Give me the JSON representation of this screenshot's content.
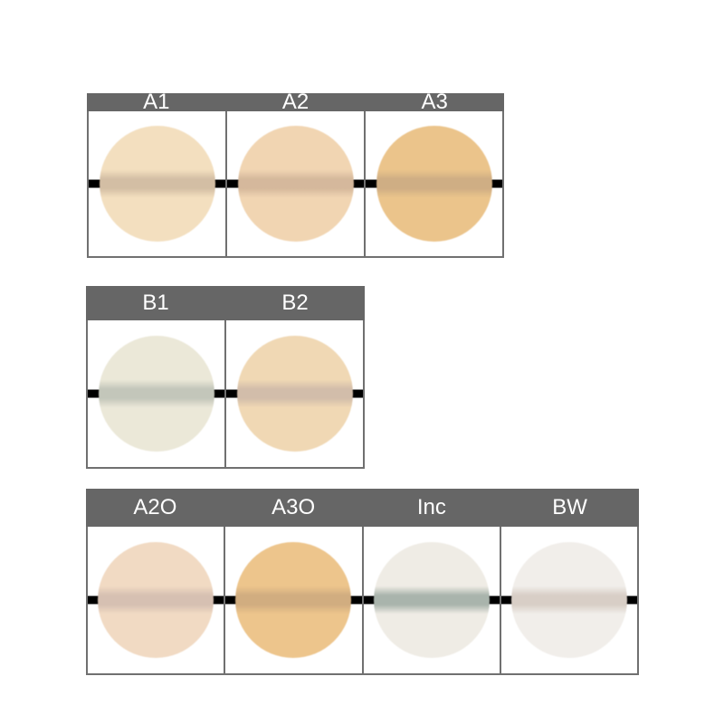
{
  "groups": [
    {
      "shades": [
        {
          "label": "A1",
          "color": "#f3dfbf",
          "band": "#d3bea4"
        },
        {
          "label": "A2",
          "color": "#f1d5b2",
          "band": "#d5b89c"
        },
        {
          "label": "A3",
          "color": "#ebc48b",
          "band": "#cfae84"
        }
      ]
    },
    {
      "shades": [
        {
          "label": "B1",
          "color": "#ebe8d8",
          "band": "#c3c6ba"
        },
        {
          "label": "B2",
          "color": "#f0d8b4",
          "band": "#d2bdaa"
        }
      ]
    },
    {
      "shades": [
        {
          "label": "A2O",
          "color": "#f1dac3",
          "band": "#d6c0b2"
        },
        {
          "label": "A3O",
          "color": "#edc58c",
          "band": "#d1ad80"
        },
        {
          "label": "Inc",
          "color": "#efece5",
          "band": "#a9b4ac"
        },
        {
          "label": "BW",
          "color": "#f1eeea",
          "band": "#d8cec6"
        }
      ]
    }
  ]
}
